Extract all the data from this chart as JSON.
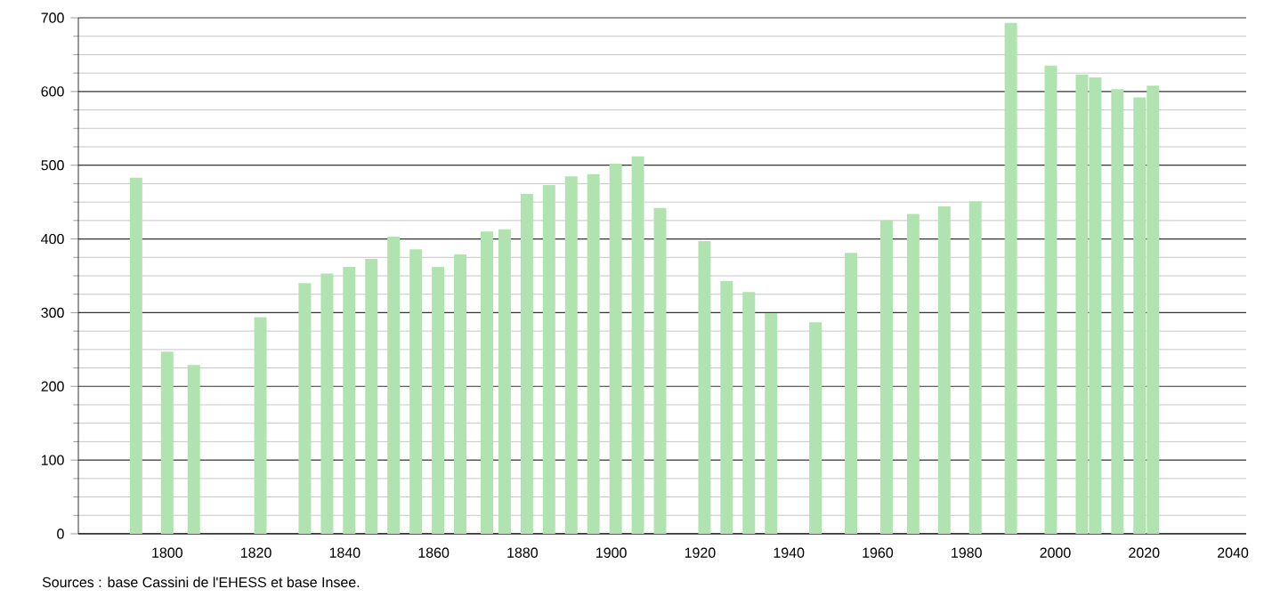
{
  "chart_data": {
    "type": "bar",
    "x": [
      1793,
      1800,
      1806,
      1821,
      1831,
      1836,
      1841,
      1846,
      1851,
      1856,
      1861,
      1866,
      1872,
      1876,
      1881,
      1886,
      1891,
      1896,
      1901,
      1906,
      1911,
      1921,
      1926,
      1931,
      1936,
      1946,
      1954,
      1962,
      1968,
      1975,
      1982,
      1990,
      1999,
      2006,
      2009,
      2014,
      2019,
      2022
    ],
    "values": [
      483,
      247,
      229,
      294,
      340,
      353,
      362,
      373,
      403,
      386,
      362,
      379,
      410,
      413,
      461,
      473,
      485,
      488,
      502,
      512,
      442,
      397,
      343,
      328,
      299,
      287,
      381,
      425,
      434,
      444,
      451,
      693,
      635,
      623,
      619,
      603,
      592,
      608
    ],
    "color": "#b0e3b0",
    "xlim": [
      1780,
      2043
    ],
    "xticks": [
      1800,
      1820,
      1840,
      1860,
      1880,
      1900,
      1920,
      1940,
      1960,
      1980,
      2000,
      2020,
      2040
    ],
    "ylim": [
      0,
      700
    ],
    "yticks": [
      0,
      100,
      200,
      300,
      400,
      500,
      600,
      700
    ],
    "grid": "y",
    "annotations": [
      "Sources : base Cassini de l'EHESS et base Insee."
    ]
  }
}
